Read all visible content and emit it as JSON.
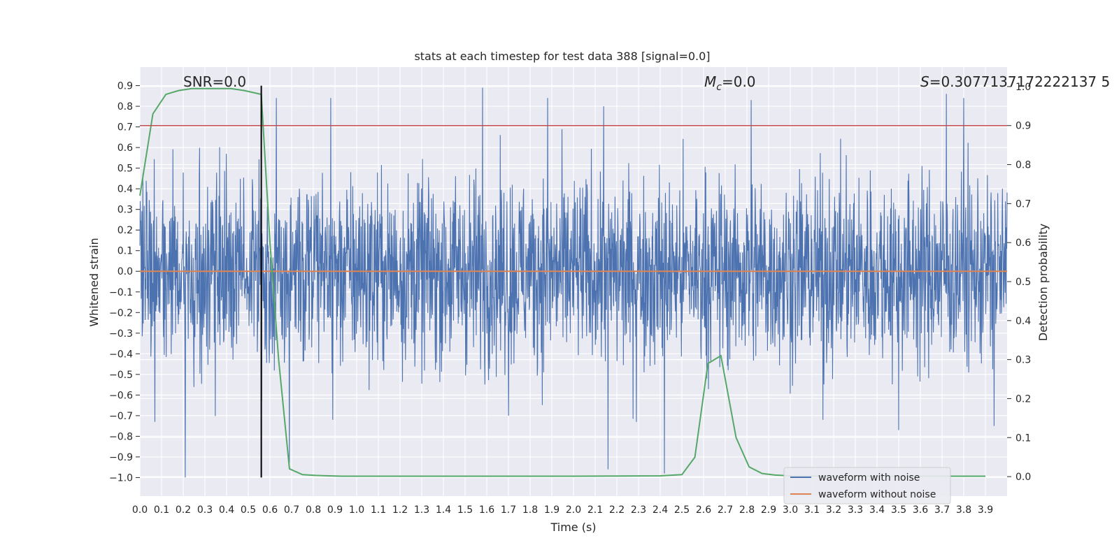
{
  "chart_data": {
    "type": "line",
    "title": "stats at each timestep for test data 388 [signal=0.0]",
    "xlabel": "Time (s)",
    "ylabel": "Whitened strain",
    "y2label": "Detection probability",
    "xlim": [
      0.0,
      4.0
    ],
    "ylim": [
      -1.09,
      0.99
    ],
    "y2lim": [
      -0.05,
      1.05
    ],
    "x_ticks": [
      "0.0",
      "0.1",
      "0.2",
      "0.3",
      "0.4",
      "0.5",
      "0.6",
      "0.7",
      "0.8",
      "0.9",
      "1.0",
      "1.1",
      "1.2",
      "1.3",
      "1.4",
      "1.5",
      "1.6",
      "1.7",
      "1.8",
      "1.9",
      "2.0",
      "2.1",
      "2.2",
      "2.3",
      "2.4",
      "2.5",
      "2.6",
      "2.7",
      "2.8",
      "2.9",
      "3.0",
      "3.1",
      "3.2",
      "3.3",
      "3.4",
      "3.5",
      "3.6",
      "3.7",
      "3.8",
      "3.9"
    ],
    "y_ticks": [
      "0.9",
      "0.8",
      "0.7",
      "0.6",
      "0.5",
      "0.4",
      "0.3",
      "0.2",
      "0.1",
      "0.0",
      "−0.1",
      "−0.2",
      "−0.3",
      "−0.4",
      "−0.5",
      "−0.6",
      "−0.7",
      "−0.8",
      "−0.9",
      "−1.0"
    ],
    "y2_ticks": [
      "0.0",
      "0.1",
      "0.2",
      "0.3",
      "0.4",
      "0.5",
      "0.6",
      "0.7",
      "0.8",
      "0.9",
      "1.0"
    ],
    "grid": true,
    "legend_position": "bottom-right",
    "annotations": {
      "snr": "SNR=0.0",
      "mc_symbol": "M",
      "mc_sub": "c",
      "mc_value": "=0.0",
      "s_symbol": "S",
      "s_value": "=0.3077137172222137 5"
    },
    "series": [
      {
        "name": "waveform with noise",
        "color": "#4c72b0",
        "axis": "left",
        "noise_envelope": {
          "typical_amplitude": 0.3,
          "min": -1.0,
          "max": 0.89,
          "x_range": [
            0.0,
            4.0
          ]
        },
        "spikes": [
          [
            0.21,
            -1.0
          ],
          [
            1.58,
            0.89
          ],
          [
            0.63,
            0.84
          ],
          [
            0.88,
            0.84
          ],
          [
            1.88,
            0.84
          ],
          [
            2.14,
            0.8
          ],
          [
            2.82,
            0.83
          ],
          [
            3.72,
            0.86
          ],
          [
            3.8,
            0.84
          ],
          [
            0.07,
            -0.73
          ],
          [
            0.69,
            -0.93
          ],
          [
            0.89,
            -0.72
          ],
          [
            2.16,
            -0.96
          ],
          [
            2.42,
            -0.98
          ],
          [
            2.29,
            -0.73
          ],
          [
            3.5,
            -0.77
          ],
          [
            3.94,
            -0.75
          ],
          [
            1.7,
            -0.7
          ],
          [
            3.15,
            -0.72
          ]
        ]
      },
      {
        "name": "waveform without noise",
        "color": "#dd8452",
        "axis": "left",
        "x": [
          0.0,
          4.0
        ],
        "y": [
          0.0,
          0.0
        ]
      },
      {
        "name": "",
        "color": "#55a868",
        "axis": "right",
        "x": [
          0.0,
          0.06,
          0.12,
          0.18,
          0.24,
          0.3,
          0.36,
          0.42,
          0.48,
          0.52,
          0.56,
          0.6,
          0.64,
          0.69,
          0.75,
          0.81,
          0.87,
          0.93,
          1.0,
          1.2,
          1.5,
          2.0,
          2.4,
          2.5,
          2.56,
          2.62,
          2.68,
          2.75,
          2.81,
          2.87,
          2.93,
          3.0,
          3.2,
          3.5,
          3.9
        ],
        "y": [
          0.72,
          0.93,
          0.98,
          0.99,
          0.995,
          0.995,
          0.995,
          0.995,
          0.99,
          0.985,
          0.98,
          0.6,
          0.3,
          0.02,
          0.005,
          0.003,
          0.002,
          0.001,
          0.001,
          0.001,
          0.001,
          0.001,
          0.002,
          0.005,
          0.05,
          0.29,
          0.31,
          0.1,
          0.025,
          0.008,
          0.004,
          0.002,
          0.001,
          0.001,
          0.001
        ]
      }
    ],
    "reference_lines": [
      {
        "orientation": "horizontal",
        "axis": "right",
        "value": 0.9,
        "color": "#c44e52"
      },
      {
        "orientation": "vertical",
        "value": 0.56,
        "y_from": -1.0,
        "y_to": 0.9,
        "color": "#000000"
      }
    ]
  }
}
